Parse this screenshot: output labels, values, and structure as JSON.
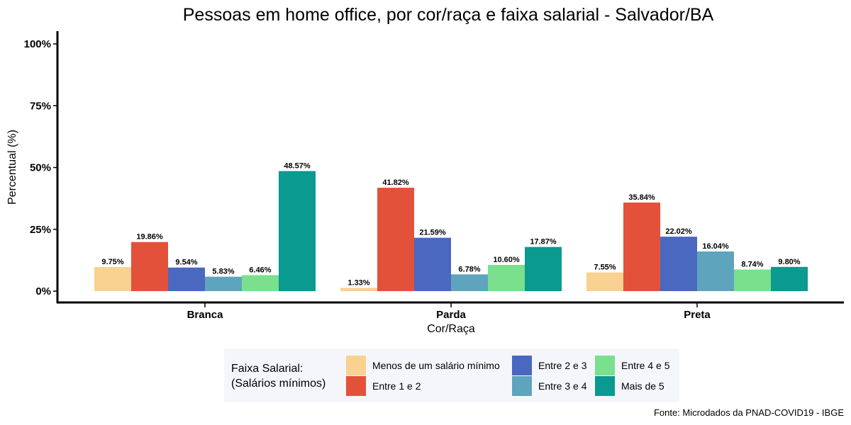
{
  "chart_data": {
    "type": "bar",
    "title": "Pessoas em home office, por cor/raça e faixa salarial - Salvador/BA",
    "xlabel": "Cor/Raça",
    "ylabel": "Percentual (%)",
    "ylim": [
      0,
      100
    ],
    "yticks": [
      "0%",
      "25%",
      "50%",
      "75%",
      "100%"
    ],
    "ytick_values": [
      0,
      25,
      50,
      75,
      100
    ],
    "categories": [
      "Branca",
      "Parda",
      "Preta"
    ],
    "legend_title_line1": "Faixa Salarial:",
    "legend_title_line2": "(Salários mínimos)",
    "legend_position": "bottom",
    "grid": false,
    "series": [
      {
        "name": "Menos de um salário mínimo",
        "color": "#f9d191",
        "values": [
          9.75,
          1.33,
          7.55
        ],
        "labels": [
          "9.75%",
          "1.33%",
          "7.55%"
        ]
      },
      {
        "name": "Entre 1 e 2",
        "color": "#e4513b",
        "values": [
          19.86,
          41.82,
          35.84
        ],
        "labels": [
          "19.86%",
          "41.82%",
          "35.84%"
        ]
      },
      {
        "name": "Entre 2 e 3",
        "color": "#4a68bf",
        "values": [
          9.54,
          21.59,
          22.02
        ],
        "labels": [
          "9.54%",
          "21.59%",
          "22.02%"
        ]
      },
      {
        "name": "Entre 3 e 4",
        "color": "#5fa4bd",
        "values": [
          5.83,
          6.78,
          16.04
        ],
        "labels": [
          "5.83%",
          "6.78%",
          "16.04%"
        ]
      },
      {
        "name": "Entre 4 e 5",
        "color": "#7ae08d",
        "values": [
          6.46,
          10.6,
          8.74
        ],
        "labels": [
          "6.46%",
          "10.60%",
          "8.74%"
        ]
      },
      {
        "name": "Mais de 5",
        "color": "#0a9a8f",
        "values": [
          48.57,
          17.87,
          9.8
        ],
        "labels": [
          "48.57%",
          "17.87%",
          "9.80%"
        ]
      }
    ],
    "caption": "Fonte: Microdados da PNAD-COVID19 - IBGE"
  }
}
